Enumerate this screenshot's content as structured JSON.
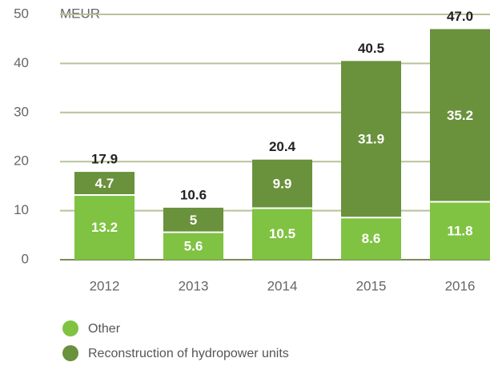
{
  "chart_data": {
    "type": "stacked_bar",
    "y_label": "MEUR",
    "categories": [
      "2012",
      "2013",
      "2014",
      "2015",
      "2016"
    ],
    "series": [
      {
        "name": "Other",
        "color": "#80c242",
        "values": [
          13.2,
          5.6,
          10.5,
          8.6,
          11.8
        ]
      },
      {
        "name": "Reconstruction of hydropower units",
        "color": "#6a913c",
        "values": [
          4.7,
          5.0,
          9.9,
          31.9,
          35.2
        ]
      }
    ],
    "totals": [
      17.9,
      10.6,
      20.4,
      40.5,
      47.0
    ],
    "total_labels": [
      "17.9",
      "10.6",
      "20.4",
      "40.5",
      "47.0"
    ],
    "ylim": [
      0,
      50
    ],
    "yticks": [
      0,
      10,
      20,
      30,
      40,
      50
    ],
    "grid": true
  }
}
